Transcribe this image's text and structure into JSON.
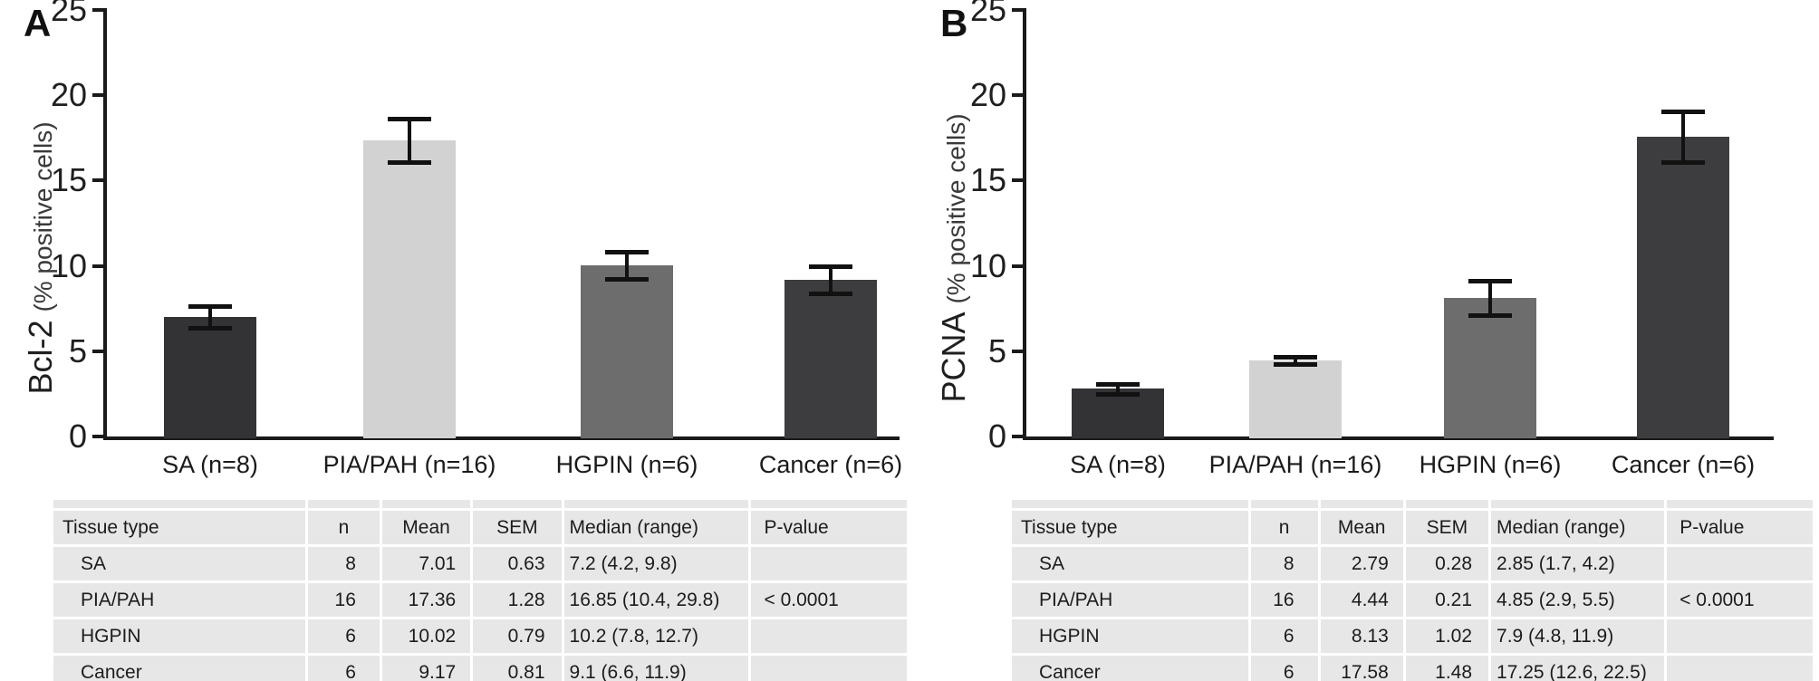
{
  "panel_letters": [
    "A",
    "B"
  ],
  "colors": {
    "axis": "#1a1a1a",
    "error_bar": "#111111",
    "table_row_bg": "#e7e7e7",
    "bar_grays": [
      "#333336",
      "#d2d2d2",
      "#6d6d6d",
      "#3d3d40"
    ]
  },
  "chart_data": [
    {
      "type": "bar",
      "panel": "A",
      "ylabel": "Bcl-2 (% positive cells)",
      "ylabel_main": "Bcl-2",
      "ylabel_sub": "(% positive cells)",
      "categories": [
        "SA (n=8)",
        "PIA/PAH (n=16)",
        "HGPIN (n=6)",
        "Cancer (n=6)"
      ],
      "values": [
        7.01,
        17.36,
        10.02,
        9.17
      ],
      "error_sem": [
        0.63,
        1.28,
        0.79,
        0.81
      ],
      "bar_colors": [
        "#333336",
        "#d2d2d2",
        "#6d6d6d",
        "#3d3d40"
      ],
      "ylim": [
        0,
        25
      ],
      "yticks": [
        0,
        5,
        10,
        15,
        20,
        25
      ],
      "grid": false,
      "legend": "none"
    },
    {
      "type": "bar",
      "panel": "B",
      "ylabel": "PCNA (% positive cells)",
      "ylabel_main": "PCNA",
      "ylabel_sub": "(% positive cells)",
      "categories": [
        "SA (n=8)",
        "PIA/PAH (n=16)",
        "HGPIN (n=6)",
        "Cancer (n=6)"
      ],
      "values": [
        2.79,
        4.44,
        8.13,
        17.58
      ],
      "error_sem": [
        0.28,
        0.21,
        1.02,
        1.48
      ],
      "bar_colors": [
        "#333336",
        "#d2d2d2",
        "#6d6d6d",
        "#3d3d40"
      ],
      "ylim": [
        0,
        25
      ],
      "yticks": [
        0,
        5,
        10,
        15,
        20,
        25
      ],
      "grid": false,
      "legend": "none"
    }
  ],
  "tables": [
    {
      "panel": "A",
      "headers": [
        "Tissue type",
        "n",
        "Mean",
        "SEM",
        "Median (range)",
        "P-value"
      ],
      "rows": [
        [
          "SA",
          "8",
          "7.01",
          "0.63",
          "7.2 (4.2, 9.8)",
          ""
        ],
        [
          "PIA/PAH",
          "16",
          "17.36",
          "1.28",
          "16.85 (10.4, 29.8)",
          "< 0.0001"
        ],
        [
          "HGPIN",
          "6",
          "10.02",
          "0.79",
          "10.2 (7.8, 12.7)",
          ""
        ],
        [
          "Cancer",
          "6",
          "9.17",
          "0.81",
          "9.1 (6.6, 11.9)",
          ""
        ]
      ]
    },
    {
      "panel": "B",
      "headers": [
        "Tissue type",
        "n",
        "Mean",
        "SEM",
        "Median (range)",
        "P-value"
      ],
      "rows": [
        [
          "SA",
          "8",
          "2.79",
          "0.28",
          "2.85 (1.7, 4.2)",
          ""
        ],
        [
          "PIA/PAH",
          "16",
          "4.44",
          "0.21",
          "4.85 (2.9, 5.5)",
          "< 0.0001"
        ],
        [
          "HGPIN",
          "6",
          "8.13",
          "1.02",
          "7.9 (4.8, 11.9)",
          ""
        ],
        [
          "Cancer",
          "6",
          "17.58",
          "1.48",
          "17.25 (12.6, 22.5)",
          ""
        ]
      ]
    }
  ]
}
